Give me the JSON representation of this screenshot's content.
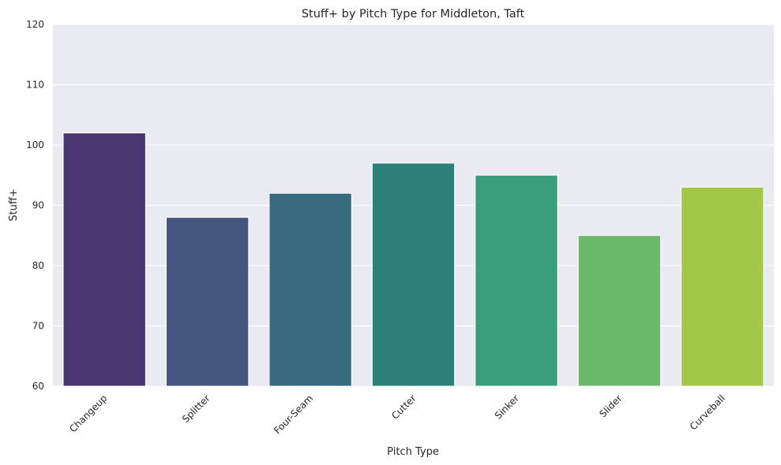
{
  "chart_data": {
    "type": "bar",
    "title": "Stuff+ by Pitch Type for Middleton, Taft",
    "xlabel": "Pitch Type",
    "ylabel": "Stuff+",
    "ylim": [
      60,
      120
    ],
    "yticks": [
      60,
      70,
      80,
      90,
      100,
      110,
      120
    ],
    "grid": true,
    "categories": [
      "Changeup",
      "Splitter",
      "Four-Seam",
      "Cutter",
      "Sinker",
      "Slider",
      "Curveball"
    ],
    "values": [
      102,
      88,
      92,
      97,
      95,
      85,
      93
    ],
    "colors": [
      "#4a3670",
      "#44567f",
      "#386b80",
      "#2d8079",
      "#3a9e7c",
      "#6bba6c",
      "#a3c747"
    ]
  }
}
